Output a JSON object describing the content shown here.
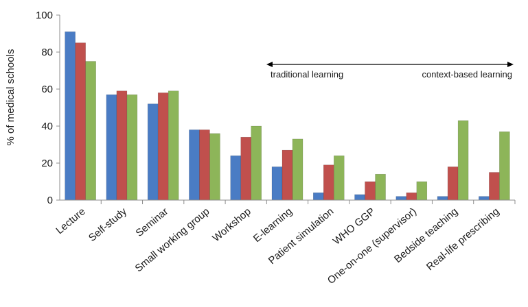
{
  "chart_data": {
    "type": "bar",
    "title": "",
    "xlabel": "",
    "ylabel": "% of medical schools",
    "ylim": [
      0,
      100
    ],
    "yticks": [
      0,
      20,
      40,
      60,
      80,
      100
    ],
    "grid": false,
    "categories": [
      "Lecture",
      "Self-study",
      "Seminar",
      "Small working group",
      "Workshop",
      "E-learning",
      "Patient simulation",
      "WHO GGP",
      "One-on-one (supervisor)",
      "Bedside teaching",
      "Real-life prescribing"
    ],
    "series": [
      {
        "color": "#4a7cc4",
        "values": [
          91,
          57,
          52,
          38,
          24,
          18,
          4,
          3,
          2,
          2,
          2
        ]
      },
      {
        "color": "#c0504d",
        "values": [
          85,
          59,
          58,
          38,
          34,
          27,
          19,
          10,
          4,
          18,
          15
        ]
      },
      {
        "color": "#8db559",
        "values": [
          75,
          57,
          59,
          36,
          40,
          33,
          24,
          14,
          10,
          43,
          37
        ]
      }
    ],
    "annotation": {
      "left_label": "traditional learning",
      "right_label": "context-based learning",
      "arrow": "double-headed"
    }
  }
}
